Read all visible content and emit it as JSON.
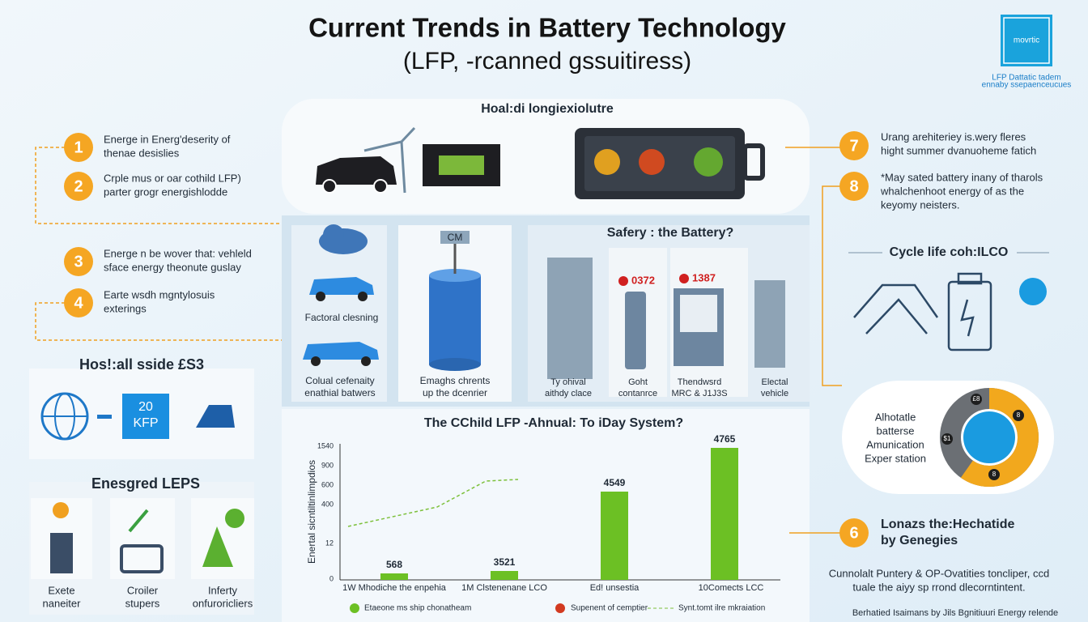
{
  "header": {
    "title": "Current Trends in Battery Technology",
    "subtitle": "(LFP, -rcanned gssuitiress)",
    "logo": "movrtic",
    "logo_caption": [
      "LFP Dattatic tadem",
      "ennaby ssepaenceucues"
    ]
  },
  "banner": {
    "label": "Hoal:di longiexiolutre"
  },
  "left_items": [
    {
      "number": "1",
      "lines": [
        "Energe in Energ'deserity of",
        "thenae desislies"
      ]
    },
    {
      "number": "2",
      "lines": [
        "Crple mus or oar cothild LFP)",
        "parter grogr energishlodde"
      ]
    },
    {
      "number": "3",
      "lines": [
        "Energe n be wover that: vehleld",
        "sface energy theonute guslay"
      ]
    },
    {
      "number": "4",
      "lines": [
        "Earte wsdh mgntylosuis",
        "exterings"
      ]
    }
  ],
  "left_box": {
    "title": "Hos!:all sside £S3",
    "value": [
      "20",
      "KFP"
    ]
  },
  "energy_panel": {
    "title": "Enesgred LEPS",
    "items": [
      [
        "Exete",
        "naneiter"
      ],
      [
        "Croiler",
        "stupers"
      ],
      [
        "Inferty",
        "onfuroricliers"
      ]
    ]
  },
  "middle": {
    "card1_top": "Factoral clesning",
    "card1_bottom": [
      "Colual cefenaity",
      "enathial batwers"
    ],
    "card2_tag": "CM",
    "card2": [
      "Emaghs chrents",
      "up the dcenrier"
    ],
    "safety_title": "Safery : the Battery?",
    "badges": [
      "0372",
      "1387"
    ],
    "labels": [
      [
        "Ty ohival",
        "aithdy clace"
      ],
      [
        "Goht",
        "contanrce"
      ],
      [
        "Thendwsrd",
        "MRC & J1J3S"
      ],
      [
        "Electal",
        "vehicle"
      ]
    ]
  },
  "chart": {
    "title": "The CChild LFP -Ahnual: To iDay System?",
    "y_label": "Enertal sicntiltinlimpdios",
    "y_ticks": [
      "1540",
      "900",
      "600",
      "400",
      "12",
      "0"
    ],
    "bars": [
      {
        "label": "568",
        "category": "1W Mhodiche the enpehia"
      },
      {
        "label": "3521",
        "category": "1M Clstenenane LCO"
      },
      {
        "label": "4549",
        "category": "Ed! unsestia"
      },
      {
        "label": "4765",
        "category": "10Comects LCC"
      }
    ],
    "legend": [
      "Etaeone ms ship chonatheam",
      "Supenent of cemptier",
      "Synt.tomt ilre mkraiation"
    ]
  },
  "right_items": [
    {
      "number": "7",
      "lines": [
        "Urang arehiteriey is.wery fleres",
        "hight summer dvanuoheme fatich"
      ]
    },
    {
      "number": "8",
      "lines": [
        "*May sated battery inany of tharols",
        "whalchenhoot energy of as the",
        "keyomy neisters."
      ]
    }
  ],
  "cycle": {
    "title": "Cycle life coh:ILCO"
  },
  "donut": {
    "lines": [
      "Alhotatle",
      "batterse",
      "Amunication",
      "Exper station"
    ],
    "marks": [
      "£8",
      "$1",
      "8",
      "8"
    ]
  },
  "item6": {
    "number": "6",
    "lines": [
      "Lonazs the:Hechatide",
      "by Genegies"
    ]
  },
  "footer": {
    "lines": [
      "Cunnolalt Puntery & OP-Ovatities toncliper, ccd",
      "tuale the aiyy sp rrond dlecorntintent."
    ],
    "credit": "Berhatied Isaimans by Jils Bgnitiuuri Energy relende"
  }
}
